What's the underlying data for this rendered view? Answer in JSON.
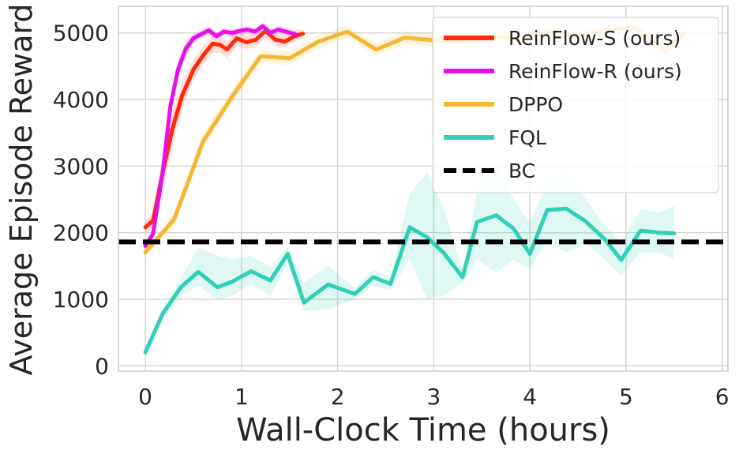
{
  "chart_data": {
    "type": "line",
    "title": "",
    "xlabel": "Wall-Clock Time (hours)",
    "ylabel": "Average Episode Reward",
    "xlim": [
      -0.28,
      6.06
    ],
    "ylim": [
      -80,
      5400
    ],
    "xticks": [
      0,
      1,
      2,
      3,
      4,
      5,
      6
    ],
    "xtick_labels": [
      "0",
      "1",
      "2",
      "3",
      "4",
      "5",
      "6"
    ],
    "yticks": [
      0,
      1000,
      2000,
      3000,
      4000,
      5000
    ],
    "ytick_labels": [
      "0",
      "1000",
      "2000",
      "3000",
      "4000",
      "5000"
    ],
    "grid": true,
    "legend_position": "top-right",
    "series": [
      {
        "name": "ReinFlow-S (ours)",
        "color": "#ff2a0a",
        "x": [
          0,
          0.08,
          0.18,
          0.28,
          0.38,
          0.5,
          0.6,
          0.7,
          0.78,
          0.85,
          0.95,
          1.05,
          1.15,
          1.25,
          1.35,
          1.45,
          1.55,
          1.64
        ],
        "y": [
          2080,
          2180,
          2900,
          3550,
          4050,
          4450,
          4660,
          4840,
          4820,
          4750,
          4920,
          4860,
          4900,
          5030,
          4900,
          4870,
          4950,
          4990
        ],
        "band_lower": [
          2000,
          2050,
          2650,
          3300,
          3850,
          4300,
          4520,
          4700,
          4700,
          4620,
          4800,
          4760,
          4780,
          4930,
          4800,
          4780,
          4860,
          4920
        ],
        "band_upper": [
          2160,
          2300,
          3150,
          3800,
          4250,
          4600,
          4800,
          4960,
          4940,
          4880,
          5040,
          4960,
          5020,
          5130,
          5000,
          4960,
          5040,
          5060
        ]
      },
      {
        "name": "ReinFlow-R (ours)",
        "color": "#e510e8",
        "x": [
          0,
          0.08,
          0.18,
          0.26,
          0.34,
          0.42,
          0.5,
          0.58,
          0.66,
          0.74,
          0.82,
          0.9,
          0.98,
          1.06,
          1.14,
          1.22,
          1.3,
          1.38,
          1.46,
          1.56
        ],
        "y": [
          1800,
          1980,
          2900,
          3900,
          4450,
          4760,
          4920,
          4980,
          5040,
          4950,
          5020,
          5000,
          5030,
          5050,
          5020,
          5100,
          5000,
          5050,
          5020,
          4980
        ],
        "band_lower": [
          1750,
          1900,
          2750,
          3750,
          4300,
          4650,
          4850,
          4920,
          4980,
          4890,
          4960,
          4940,
          4970,
          4990,
          4960,
          5040,
          4940,
          4990,
          4960,
          4930
        ],
        "band_upper": [
          1850,
          2060,
          3050,
          4050,
          4600,
          4870,
          4990,
          5040,
          5100,
          5010,
          5080,
          5060,
          5090,
          5110,
          5080,
          5160,
          5060,
          5110,
          5080,
          5030
        ]
      },
      {
        "name": "DPPO",
        "color": "#f5b731",
        "x": [
          0,
          0.3,
          0.6,
          0.9,
          1.2,
          1.5,
          1.8,
          2.1,
          2.4,
          2.7,
          3.0,
          3.3,
          3.6,
          3.9,
          4.2,
          4.5,
          4.8,
          5.1,
          5.4,
          5.6
        ],
        "y": [
          1700,
          2200,
          3370,
          4040,
          4650,
          4620,
          4870,
          5020,
          4750,
          4930,
          4890,
          4880,
          4950,
          4900,
          5020,
          4960,
          5050,
          5080,
          4720,
          4980
        ],
        "band_lower": [
          1650,
          2100,
          3250,
          3940,
          4550,
          4520,
          4770,
          4930,
          4650,
          4830,
          4790,
          4780,
          4850,
          4800,
          4920,
          4860,
          4950,
          4980,
          4620,
          4880
        ],
        "band_upper": [
          1750,
          2300,
          3490,
          4140,
          4750,
          4720,
          4970,
          5110,
          4850,
          5030,
          4990,
          4980,
          5050,
          5000,
          5120,
          5060,
          5150,
          5180,
          4820,
          5080
        ]
      },
      {
        "name": "FQL",
        "color": "#2fd0b5",
        "x": [
          0,
          0.18,
          0.37,
          0.55,
          0.75,
          0.9,
          1.1,
          1.3,
          1.48,
          1.65,
          1.9,
          2.18,
          2.37,
          2.55,
          2.75,
          2.93,
          3.1,
          3.3,
          3.45,
          3.65,
          3.83,
          4.0,
          4.18,
          4.38,
          4.58,
          4.78,
          4.95,
          5.15,
          5.35,
          5.5
        ],
        "y": [
          200,
          780,
          1180,
          1410,
          1180,
          1260,
          1420,
          1280,
          1680,
          950,
          1220,
          1080,
          1330,
          1230,
          2080,
          1930,
          1700,
          1330,
          2160,
          2260,
          2060,
          1680,
          2340,
          2360,
          2170,
          1900,
          1590,
          2030,
          2000,
          1990
        ],
        "band_lower": [
          150,
          700,
          1050,
          1200,
          1000,
          1050,
          1230,
          1050,
          1550,
          820,
          850,
          1000,
          1200,
          1130,
          1600,
          1000,
          1050,
          1250,
          1600,
          1400,
          1600,
          1450,
          1900,
          1700,
          1850,
          1600,
          1350,
          1700,
          1700,
          1600
        ],
        "band_upper": [
          250,
          860,
          1320,
          1780,
          1650,
          1600,
          1650,
          1480,
          1800,
          1250,
          1500,
          1170,
          1450,
          1330,
          2600,
          2900,
          2400,
          1410,
          2600,
          3000,
          2500,
          2150,
          2750,
          2900,
          2500,
          2100,
          1850,
          2350,
          2300,
          2400
        ]
      },
      {
        "name": "BC",
        "color": "#000000",
        "dashed": true,
        "x": [
          -0.28,
          6.06
        ],
        "y": [
          1860,
          1860
        ]
      }
    ]
  }
}
